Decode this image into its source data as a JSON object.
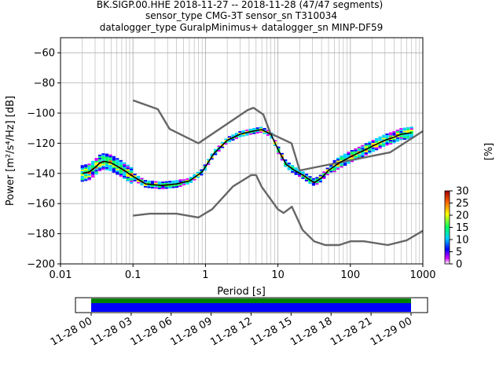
{
  "title": {
    "line1": "BK.SIGP.00.HHE   2018-11-27 -- 2018-11-28  (47/47 segments)",
    "line2": "sensor_type CMG-3T sensor_sn T310034",
    "line3": "datalogger_type GuralpMinimus+ datalogger_sn MINP-DF59"
  },
  "chart_data": [
    {
      "type": "heatmap",
      "name": "ppsd",
      "xlabel": "Period [s]",
      "ylabel": "Power [m²/s⁴/Hz] [dB]",
      "xscale": "log",
      "xlim": [
        0.01,
        1000
      ],
      "ylim": [
        -200,
        -50
      ],
      "x_ticks": [
        "0.01",
        "0.1",
        "1",
        "10",
        "100",
        "1000"
      ],
      "y_ticks": [
        "−200",
        "−180",
        "−160",
        "−140",
        "−120",
        "−100",
        "−80",
        "−60"
      ],
      "grid": true,
      "colorbar": {
        "label": "[%]",
        "range": [
          0,
          30
        ],
        "ticks": [
          "0",
          "5",
          "10",
          "15",
          "20",
          "25",
          "30"
        ]
      },
      "series": [
        {
          "name": "NHNM",
          "color": "#666666",
          "x": [
            0.1,
            0.22,
            0.32,
            0.8,
            3.8,
            4.6,
            6.3,
            7.9,
            15.4,
            20,
            354.8,
            1000
          ],
          "y": [
            -91.5,
            -97.4,
            -110.5,
            -120,
            -98,
            -96.5,
            -101,
            -113.5,
            -120,
            -138,
            -126,
            -112
          ]
        },
        {
          "name": "NLNM",
          "color": "#666666",
          "x": [
            0.1,
            0.17,
            0.4,
            0.8,
            1.24,
            2.4,
            4.3,
            5,
            6,
            10,
            12,
            15.6,
            21.9,
            31.6,
            45,
            70,
            101,
            154,
            328,
            600,
            1000
          ],
          "y": [
            -168,
            -166.7,
            -166.7,
            -169.2,
            -163.7,
            -148.6,
            -141.1,
            -141.1,
            -149,
            -163.8,
            -166.2,
            -162.1,
            -177.5,
            -185,
            -187.5,
            -187.5,
            -185,
            -185,
            -187.5,
            -184.4,
            -178
          ]
        },
        {
          "name": "mean",
          "color": "#000000",
          "x": [
            0.02,
            0.025,
            0.03,
            0.035,
            0.04,
            0.05,
            0.07,
            0.1,
            0.15,
            0.25,
            0.4,
            0.6,
            0.9,
            1.3,
            2,
            3,
            4.5,
            6,
            8,
            10,
            13,
            17,
            22,
            27,
            32,
            40,
            50,
            70,
            100,
            150,
            200,
            300,
            400,
            500,
            700
          ],
          "y": [
            -140,
            -139,
            -136,
            -133,
            -132,
            -133,
            -137,
            -142,
            -147,
            -148,
            -147,
            -145,
            -139,
            -127,
            -118,
            -114,
            -112,
            -111,
            -114,
            -124,
            -134,
            -138,
            -141,
            -144,
            -146,
            -143,
            -138,
            -133,
            -129,
            -125,
            -122,
            -118,
            -116,
            -114,
            -113
          ]
        }
      ]
    },
    {
      "type": "timeline",
      "name": "coverage",
      "x_ticks": [
        "11-28 00",
        "11-28 03",
        "11-28 06",
        "11-28 09",
        "11-28 12",
        "11-28 15",
        "11-28 18",
        "11-28 21",
        "11-29 00"
      ],
      "bars": [
        {
          "name": "data",
          "color": "#0000ff",
          "start_hour": 0,
          "end_hour": 24
        },
        {
          "name": "used",
          "color": "#008000",
          "start_hour": 0,
          "end_hour": 24
        }
      ]
    }
  ]
}
